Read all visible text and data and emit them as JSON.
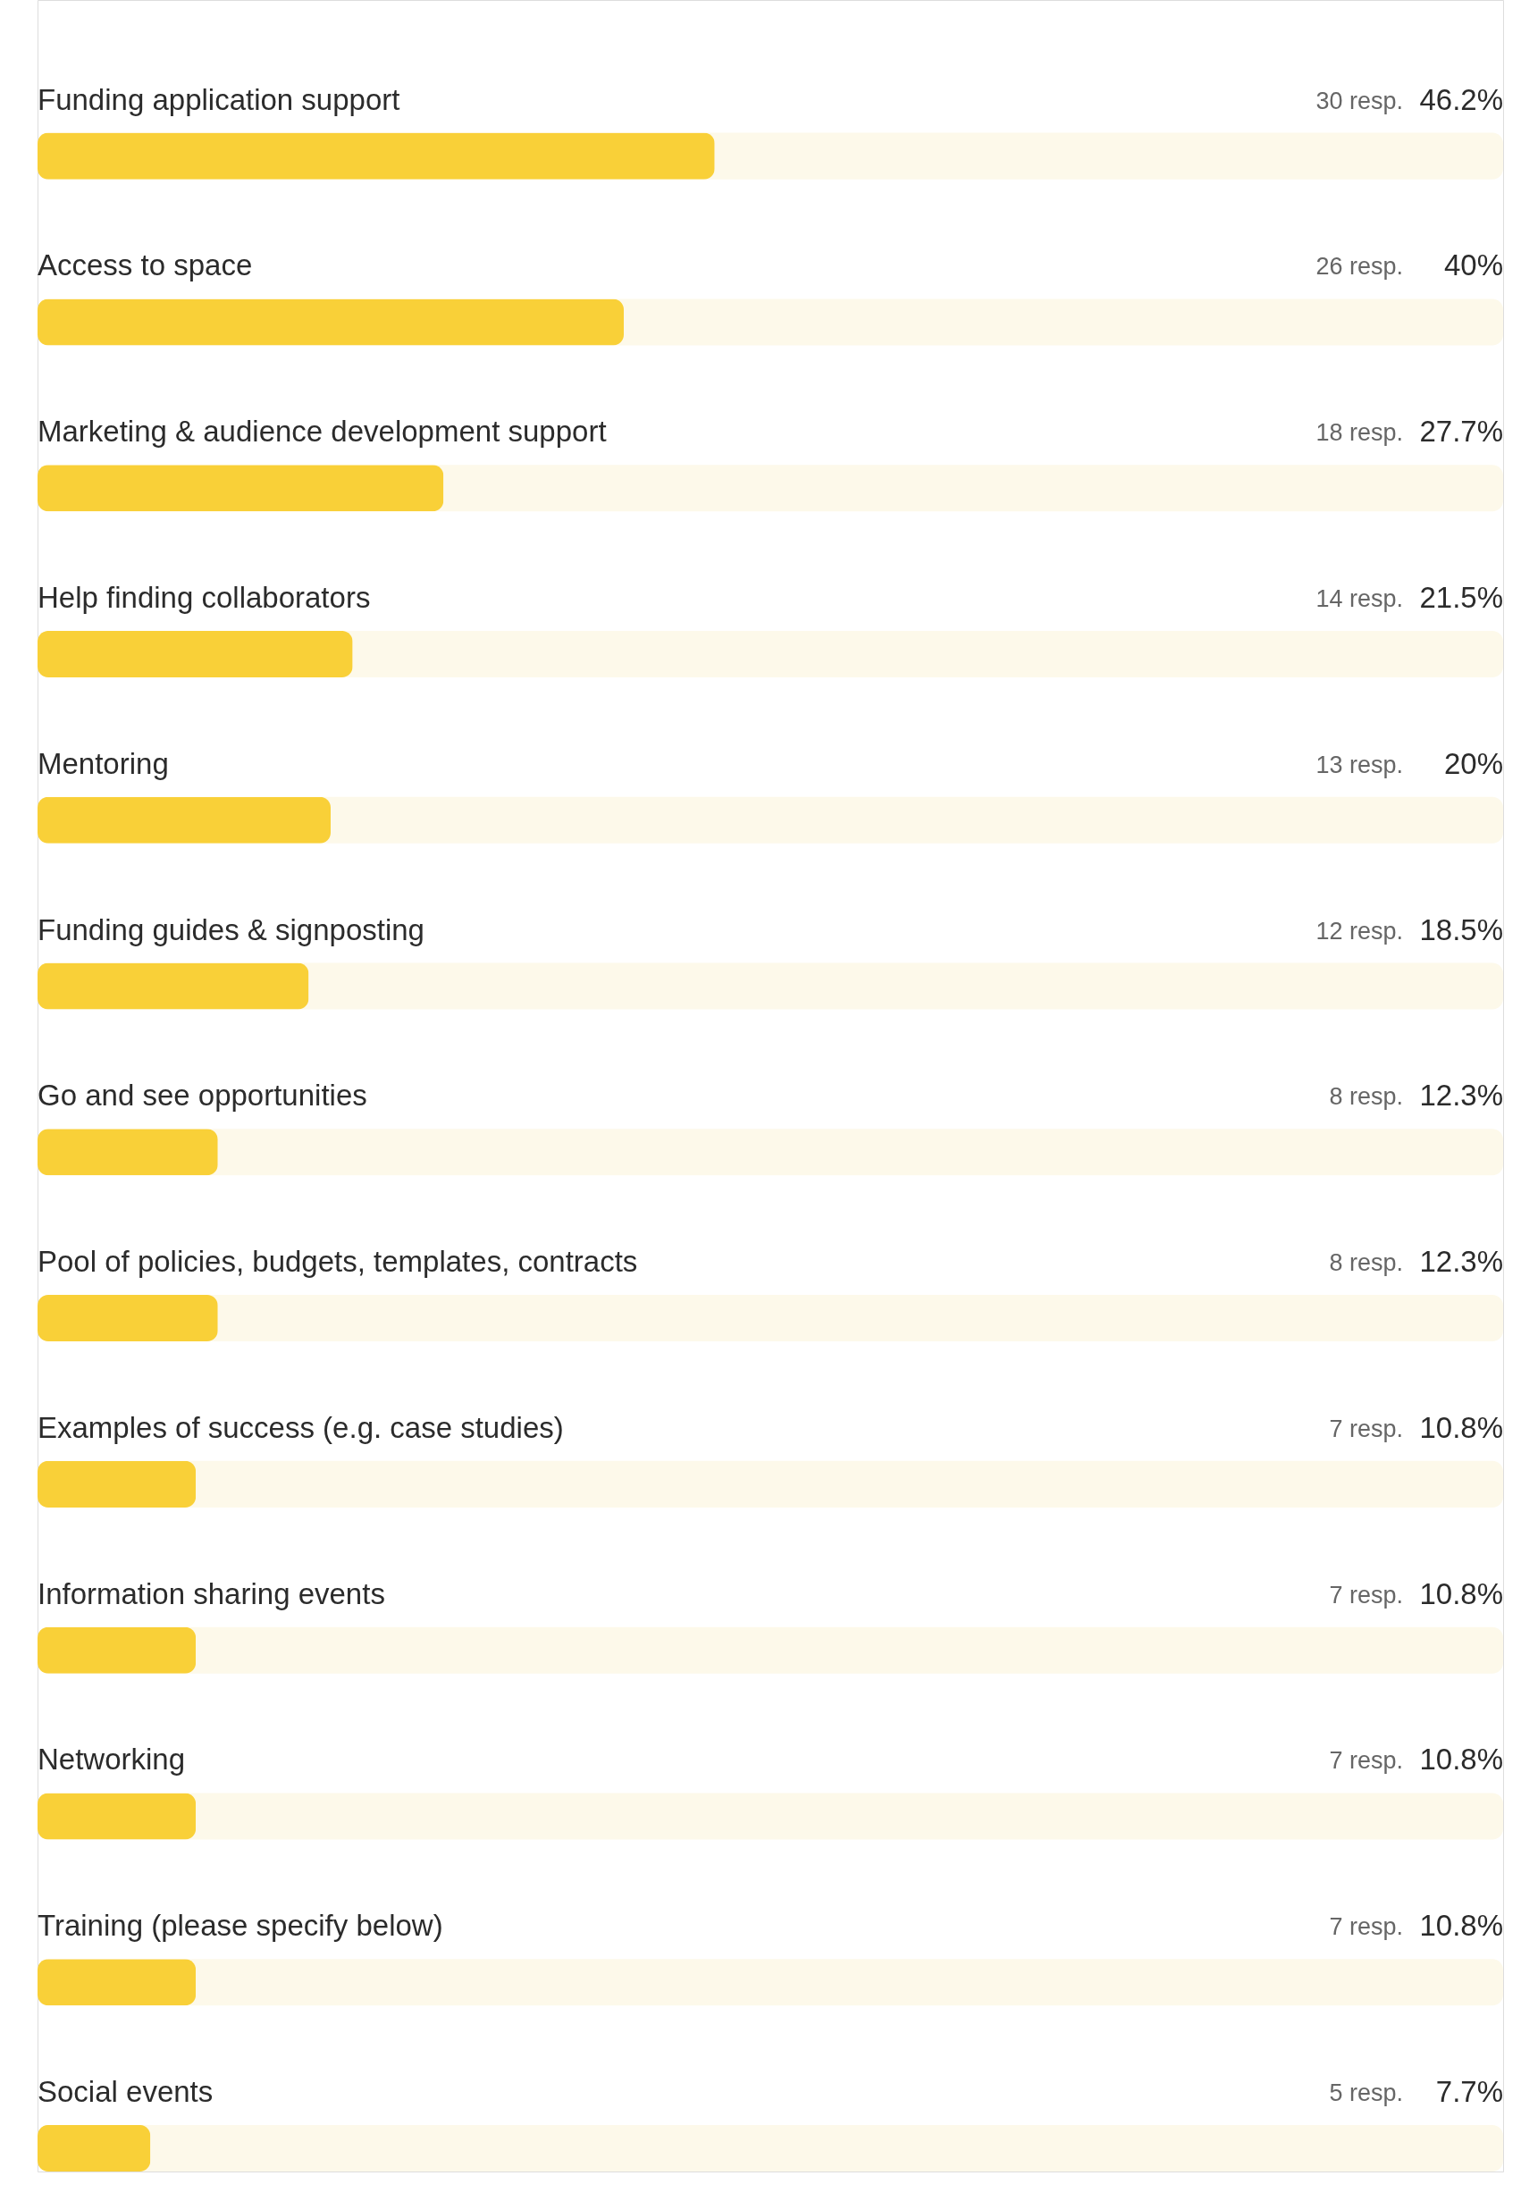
{
  "chart_data": {
    "type": "bar",
    "orientation": "horizontal",
    "tick_labels": false,
    "color": "#f9d038",
    "categories": [
      "Funding application support",
      "Access to space",
      "Marketing & audience development support",
      "Help finding collaborators",
      "Mentoring",
      "Funding guides & signposting",
      "Go and see opportunities",
      "Pool of policies, budgets, templates, contracts",
      "Examples of success (e.g. case studies)",
      "Information sharing events",
      "Networking",
      "Training (please specify below)",
      "Social events"
    ],
    "values": [
      46.2,
      40,
      27.7,
      21.5,
      20,
      18.5,
      12.3,
      12.3,
      10.8,
      10.8,
      10.8,
      10.8,
      7.7
    ],
    "value_labels": [
      "46.2%",
      "40%",
      "27.7%",
      "21.5%",
      "20%",
      "18.5%",
      "12.3%",
      "12.3%",
      "10.8%",
      "10.8%",
      "10.8%",
      "10.8%",
      "7.7%"
    ],
    "xlim": [
      0,
      100
    ],
    "annotations": [
      "30 resp.",
      "26 resp.",
      "18 resp.",
      "14 resp.",
      "13 resp.",
      "12 resp.",
      "8 resp.",
      "8 resp.",
      "7 resp.",
      "7 resp.",
      "7 resp.",
      "7 resp.",
      "5 resp."
    ]
  }
}
